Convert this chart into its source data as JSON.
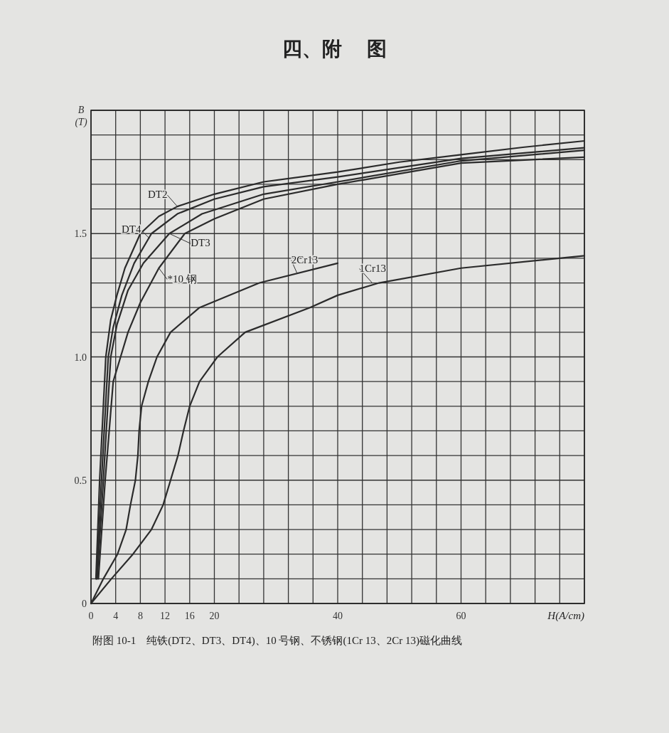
{
  "chart_data": {
    "type": "line",
    "title": "四、附　 图",
    "xlabel": "H(A/cm)",
    "ylabel": "B\n(T)",
    "xlim": [
      0,
      80
    ],
    "ylim": [
      0,
      2.0
    ],
    "xticks": [
      0,
      4,
      8,
      12,
      16,
      20,
      {
        "value": 24,
        "label": null
      },
      {
        "value": 28,
        "label": null
      },
      {
        "value": 32,
        "label": null
      },
      {
        "value": 36,
        "label": null
      },
      40,
      {
        "value": 44,
        "label": null
      },
      {
        "value": 48,
        "label": null
      },
      {
        "value": 52,
        "label": null
      },
      {
        "value": 56,
        "label": null
      },
      60,
      {
        "value": 64,
        "label": null
      },
      {
        "value": 68,
        "label": null
      },
      {
        "value": 72,
        "label": null
      },
      {
        "value": 76,
        "label": null
      },
      {
        "value": 80,
        "label": null
      }
    ],
    "yticks": [
      0,
      {
        "value": 0.1,
        "label": null
      },
      {
        "value": 0.2,
        "label": null
      },
      {
        "value": 0.3,
        "label": null
      },
      {
        "value": 0.4,
        "label": null
      },
      {
        "value": 0.5,
        "label": "0.5"
      },
      {
        "value": 0.6,
        "label": null
      },
      {
        "value": 0.7,
        "label": null
      },
      {
        "value": 0.8,
        "label": null
      },
      {
        "value": 0.9,
        "label": null
      },
      {
        "value": 1.0,
        "label": "1.0"
      },
      {
        "value": 1.1,
        "label": null
      },
      {
        "value": 1.2,
        "label": null
      },
      {
        "value": 1.3,
        "label": null
      },
      {
        "value": 1.4,
        "label": null
      },
      {
        "value": 1.5,
        "label": "1.5"
      },
      {
        "value": 1.6,
        "label": null
      },
      {
        "value": 1.7,
        "label": null
      },
      {
        "value": 1.8,
        "label": null
      },
      {
        "value": 1.9,
        "label": null
      },
      {
        "value": 2.0,
        "label": null
      }
    ],
    "grid": true,
    "line_style": "solid",
    "marker": "none",
    "series": [
      {
        "color": "#2b2b2b",
        "x": [
          0.8,
          1.4,
          2.4,
          3.2,
          4.2,
          5.5,
          8,
          11,
          14,
          20,
          28,
          40,
          50,
          60,
          70,
          80
        ],
        "values": [
          0.1,
          0.5,
          1.0,
          1.15,
          1.25,
          1.36,
          1.5,
          1.57,
          1.61,
          1.66,
          1.71,
          1.75,
          1.79,
          1.82,
          1.85,
          1.876
        ]
      },
      {
        "color": "#2b2b2b",
        "x": [
          0.9,
          1.7,
          2.8,
          3.6,
          5,
          7,
          9.8,
          14,
          20,
          28,
          40,
          60,
          80
        ],
        "values": [
          0.1,
          0.5,
          1.0,
          1.12,
          1.25,
          1.38,
          1.5,
          1.58,
          1.64,
          1.69,
          1.73,
          1.805,
          1.848
        ]
      },
      {
        "color": "#2b2b2b",
        "x": [
          1.0,
          2.0,
          3.2,
          4.2,
          6,
          8.5,
          12.7,
          18,
          28,
          40,
          60,
          80
        ],
        "values": [
          0.1,
          0.5,
          1.0,
          1.13,
          1.27,
          1.38,
          1.5,
          1.58,
          1.66,
          1.71,
          1.795,
          1.838
        ]
      },
      {
        "color": "#2b2b2b",
        "x": [
          1.2,
          2.3,
          3.6,
          4.8,
          6,
          8,
          11,
          15.2,
          20,
          28,
          40,
          60,
          80
        ],
        "values": [
          0.1,
          0.5,
          0.9,
          1.0,
          1.1,
          1.22,
          1.36,
          1.5,
          1.56,
          1.64,
          1.7,
          1.786,
          1.81
        ]
      },
      {
        "color": "#2b2b2b",
        "x": [
          0,
          2,
          4.3,
          5.7,
          6.4,
          7.2,
          7.6,
          7.8,
          8.2,
          9.3,
          10.7,
          12.9,
          17.6,
          27.3,
          40
        ],
        "values": [
          0,
          0.1,
          0.2,
          0.3,
          0.4,
          0.5,
          0.6,
          0.7,
          0.8,
          0.9,
          1.0,
          1.1,
          1.2,
          1.3,
          1.38
        ]
      },
      {
        "color": "#2b2b2b",
        "x": [
          0,
          3.3,
          6.8,
          9.8,
          11.7,
          12.9,
          14.1,
          15,
          16,
          17.6,
          20.5,
          25,
          35.5,
          40,
          46.7,
          60,
          80
        ],
        "values": [
          0,
          0.1,
          0.2,
          0.3,
          0.4,
          0.5,
          0.6,
          0.7,
          0.8,
          0.9,
          1.0,
          1.1,
          1.2,
          1.25,
          1.3,
          1.36,
          1.41
        ]
      }
    ],
    "annotations": [
      {
        "text": "DT2",
        "x": 14,
        "y": 1.61
      },
      {
        "text": "DT4",
        "x": 9.5,
        "y": 1.48
      },
      {
        "text": "DT3",
        "x": 12.7,
        "y": 1.5
      },
      {
        "text": "*10 钢",
        "x": 11,
        "y": 1.36
      },
      {
        "text": "2Cr13",
        "x": 33.4,
        "y": 1.34
      },
      {
        "text": "1Cr13",
        "x": 45.6,
        "y": 1.3
      },
      "附图 10-1　纯铁(DT2、DT3、DT4)、10 号钢、不锈钢(1Cr 13、2Cr 13)磁化曲线"
    ]
  }
}
